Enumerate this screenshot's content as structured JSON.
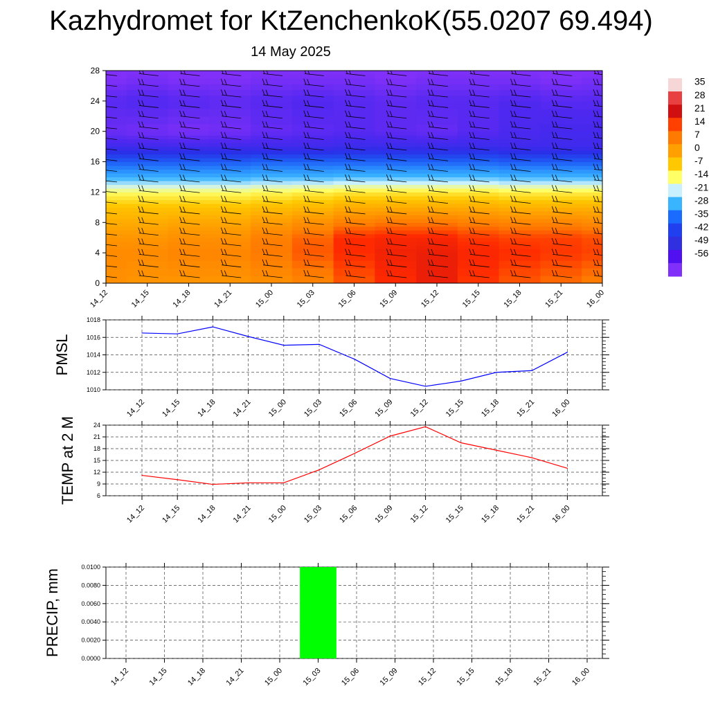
{
  "header": {
    "title": "Kazhydromet for KtZenchenkoK(55.0207 69.494)",
    "subtitle": "14 May 2025"
  },
  "colorbar": {
    "labels": [
      "35",
      "28",
      "21",
      "14",
      "7",
      "0",
      "-7",
      "-14",
      "-21",
      "-28",
      "-35",
      "-42",
      "-49",
      "-56"
    ],
    "colors": [
      "#f6d6d6",
      "#e84040",
      "#d01010",
      "#ff4000",
      "#ff7a00",
      "#ffa000",
      "#ffc800",
      "#ffff66",
      "#c8f0ff",
      "#39b4ff",
      "#1a6bff",
      "#2040f0",
      "#3030e0",
      "#5010f0",
      "#8030f8"
    ]
  },
  "chart_data": [
    {
      "type": "heatmap",
      "name": "upper-air temperature cross-section",
      "x_ticks": [
        "14_12",
        "14_15",
        "14_18",
        "14_21",
        "15_00",
        "15_03",
        "15_06",
        "15_09",
        "15_12",
        "15_15",
        "15_18",
        "15_21",
        "16_00"
      ],
      "y_ticks": [
        0,
        4,
        8,
        12,
        16,
        20,
        24,
        28
      ],
      "ylim": [
        0,
        28
      ],
      "zlim": [
        -56,
        35
      ],
      "temperature_by_level": [
        {
          "level": 0,
          "values": [
            10,
            9,
            9,
            9,
            10,
            12,
            17,
            21,
            24,
            20,
            17,
            15,
            13
          ]
        },
        {
          "level": 4,
          "values": [
            11,
            11,
            12,
            12,
            14,
            17,
            21,
            23,
            24,
            22,
            21,
            20,
            19
          ]
        },
        {
          "level": 6,
          "values": [
            9,
            9,
            10,
            10,
            13,
            16,
            21,
            22,
            22,
            20,
            19,
            19,
            18
          ]
        },
        {
          "level": 8,
          "values": [
            5,
            5,
            6,
            6,
            8,
            10,
            13,
            14,
            14,
            13,
            12,
            12,
            11
          ]
        },
        {
          "level": 10,
          "values": [
            1,
            1,
            1,
            1,
            2,
            3,
            5,
            5,
            5,
            5,
            4,
            4,
            4
          ]
        },
        {
          "level": 12,
          "values": [
            -7,
            -7,
            -7,
            -7,
            -6,
            -5,
            -4,
            -4,
            -4,
            -4,
            -5,
            -5,
            -5
          ]
        },
        {
          "level": 14,
          "values": [
            -22,
            -22,
            -22,
            -22,
            -21,
            -21,
            -20,
            -20,
            -20,
            -20,
            -21,
            -21,
            -21
          ]
        },
        {
          "level": 16,
          "values": [
            -35,
            -35,
            -35,
            -35,
            -34,
            -34,
            -34,
            -34,
            -34,
            -34,
            -35,
            -35,
            -35
          ]
        },
        {
          "level": 18,
          "values": [
            -46,
            -46,
            -46,
            -46,
            -46,
            -46,
            -45,
            -45,
            -45,
            -45,
            -46,
            -46,
            -46
          ]
        },
        {
          "level": 20,
          "values": [
            -53,
            -54,
            -55,
            -54,
            -52,
            -51,
            -50,
            -51,
            -52,
            -50,
            -48,
            -47,
            -47
          ]
        },
        {
          "level": 24,
          "values": [
            -50,
            -49,
            -50,
            -51,
            -50,
            -49,
            -50,
            -51,
            -50,
            -50,
            -49,
            -50,
            -50
          ]
        },
        {
          "level": 27,
          "values": [
            -56,
            -55,
            -56,
            -56,
            -55,
            -55,
            -55,
            -56,
            -55,
            -55,
            -55,
            -56,
            -55
          ]
        },
        {
          "level": 28,
          "values": [
            -57,
            -56,
            -56,
            -56,
            -56,
            -56,
            -56,
            -56,
            -56,
            -56,
            -56,
            -56,
            -57
          ]
        }
      ]
    },
    {
      "type": "line",
      "ylabel": "PMSL",
      "categories": [
        "14_12",
        "14_15",
        "14_18",
        "14_21",
        "15_00",
        "15_03",
        "15_06",
        "15_09",
        "15_12",
        "15_15",
        "15_18",
        "15_21",
        "16_00"
      ],
      "series": [
        {
          "values": [
            1016.5,
            1016.4,
            1017.2,
            1016.1,
            1015.1,
            1015.2,
            1013.5,
            1011.3,
            1010.4,
            1011.0,
            1012.0,
            1012.2,
            1014.3
          ],
          "color": "#0000ff"
        }
      ],
      "ylim": [
        1010,
        1018
      ],
      "y_ticks": [
        "1010",
        "1012",
        "1014",
        "1016",
        "1018"
      ]
    },
    {
      "type": "line",
      "ylabel": "TEMP at 2 M",
      "categories": [
        "14_12",
        "14_15",
        "14_18",
        "14_21",
        "15_00",
        "15_03",
        "15_06",
        "15_09",
        "15_12",
        "15_15",
        "15_18",
        "15_21",
        "16_00"
      ],
      "series": [
        {
          "values": [
            11.2,
            10.1,
            8.9,
            9.3,
            9.3,
            12.6,
            16.8,
            21.2,
            23.6,
            19.5,
            17.6,
            15.7,
            13.0
          ],
          "color": "#ff0000"
        }
      ],
      "ylim": [
        6,
        24
      ],
      "y_ticks": [
        "6",
        "9",
        "12",
        "15",
        "18",
        "21",
        "24"
      ]
    },
    {
      "type": "bar",
      "ylabel": "PRECIP, mm",
      "categories": [
        "14_12",
        "14_15",
        "14_18",
        "14_21",
        "15_00",
        "15_03",
        "15_06",
        "15_09",
        "15_12",
        "15_15",
        "15_18",
        "15_21",
        "16_00"
      ],
      "values": [
        0,
        0,
        0,
        0,
        0,
        0.01,
        0,
        0,
        0,
        0,
        0,
        0,
        0
      ],
      "color": "#00ff00",
      "ylim": [
        0,
        0.01
      ],
      "y_ticks": [
        "0.0000",
        "0.0020",
        "0.0040",
        "0.0060",
        "0.0080",
        "0.0100"
      ]
    }
  ]
}
